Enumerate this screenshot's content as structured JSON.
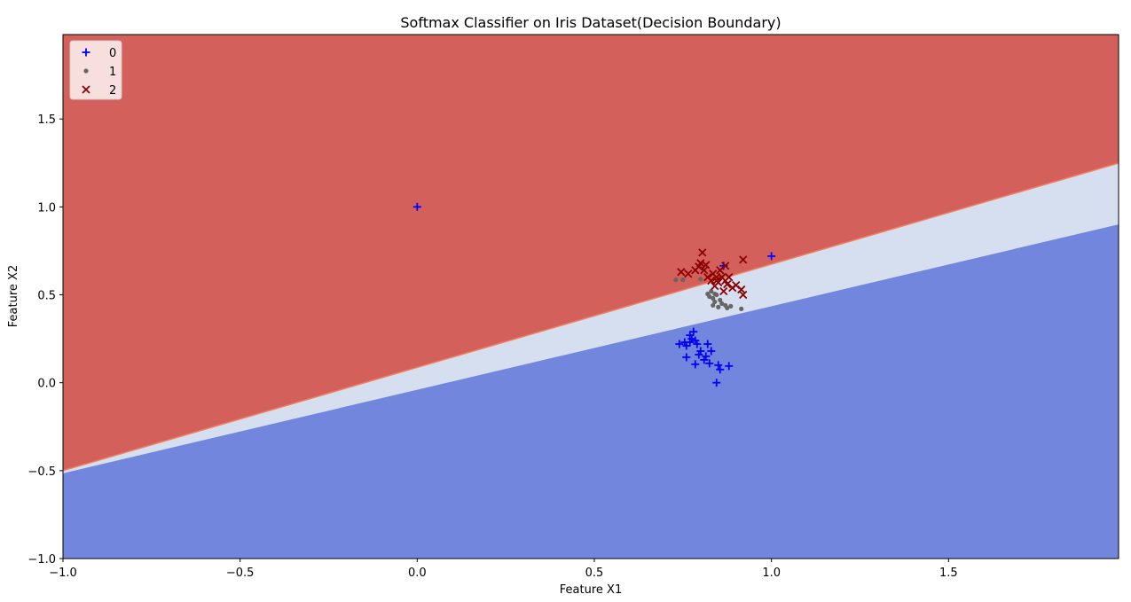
{
  "chart_data": {
    "type": "scatter",
    "title": "Softmax Classifier on Iris Dataset(Decision Boundary)",
    "xlabel": "Feature X1",
    "ylabel": "Feature X2",
    "xlim": [
      -1.0,
      1.98
    ],
    "ylim": [
      -1.0,
      1.98
    ],
    "xticks": [
      -1.0,
      -0.5,
      0.0,
      0.5,
      1.0,
      1.5
    ],
    "xtick_labels": [
      "−1.0",
      "−0.5",
      "0.0",
      "0.5",
      "1.0",
      "1.5"
    ],
    "yticks": [
      -1.0,
      -0.5,
      0.0,
      0.5,
      1.0,
      1.5
    ],
    "ytick_labels": [
      "−1.0",
      "−0.5",
      "0.0",
      "0.5",
      "1.0",
      "1.5"
    ],
    "grid": false,
    "legend_position": "top-left",
    "decision_regions": {
      "colors": {
        "class2_region": "#d4605c",
        "class1_region": "#d6dff0",
        "class0_region": "#7286de",
        "edge": "#f08060"
      },
      "boundary_2_1": {
        "slope": 0.587,
        "intercept": 0.087
      },
      "boundary_1_0": {
        "slope": 0.475,
        "intercept": -0.04
      }
    },
    "series": [
      {
        "name": "0",
        "marker": "plus",
        "color": "#0000ff",
        "points": [
          [
            0.0,
            1.0
          ],
          [
            1.0,
            0.72
          ],
          [
            0.865,
            0.665
          ],
          [
            0.74,
            0.22
          ],
          [
            0.755,
            0.23
          ],
          [
            0.76,
            0.21
          ],
          [
            0.77,
            0.27
          ],
          [
            0.775,
            0.25
          ],
          [
            0.78,
            0.29
          ],
          [
            0.785,
            0.24
          ],
          [
            0.79,
            0.22
          ],
          [
            0.77,
            0.23
          ],
          [
            0.8,
            0.18
          ],
          [
            0.82,
            0.22
          ],
          [
            0.83,
            0.18
          ],
          [
            0.81,
            0.13
          ],
          [
            0.825,
            0.11
          ],
          [
            0.815,
            0.15
          ],
          [
            0.76,
            0.145
          ],
          [
            0.785,
            0.105
          ],
          [
            0.85,
            0.1
          ],
          [
            0.855,
            0.075
          ],
          [
            0.88,
            0.095
          ],
          [
            0.845,
            0.0
          ],
          [
            0.795,
            0.16
          ]
        ]
      },
      {
        "name": "1",
        "marker": "dot",
        "color": "#666666",
        "points": [
          [
            0.73,
            0.585
          ],
          [
            0.75,
            0.585
          ],
          [
            0.8,
            0.59
          ],
          [
            0.82,
            0.505
          ],
          [
            0.83,
            0.52
          ],
          [
            0.835,
            0.48
          ],
          [
            0.84,
            0.46
          ],
          [
            0.845,
            0.5
          ],
          [
            0.85,
            0.43
          ],
          [
            0.855,
            0.47
          ],
          [
            0.86,
            0.45
          ],
          [
            0.87,
            0.44
          ],
          [
            0.875,
            0.425
          ],
          [
            0.885,
            0.435
          ],
          [
            0.915,
            0.42
          ],
          [
            0.835,
            0.44
          ],
          [
            0.825,
            0.49
          ],
          [
            0.84,
            0.505
          ]
        ]
      },
      {
        "name": "2",
        "marker": "x",
        "color": "#8b0000",
        "points": [
          [
            0.745,
            0.63
          ],
          [
            0.765,
            0.62
          ],
          [
            0.785,
            0.64
          ],
          [
            0.795,
            0.66
          ],
          [
            0.8,
            0.68
          ],
          [
            0.805,
            0.74
          ],
          [
            0.81,
            0.64
          ],
          [
            0.815,
            0.67
          ],
          [
            0.82,
            0.6
          ],
          [
            0.83,
            0.58
          ],
          [
            0.835,
            0.62
          ],
          [
            0.84,
            0.55
          ],
          [
            0.845,
            0.6
          ],
          [
            0.85,
            0.57
          ],
          [
            0.855,
            0.64
          ],
          [
            0.86,
            0.6
          ],
          [
            0.865,
            0.52
          ],
          [
            0.87,
            0.58
          ],
          [
            0.875,
            0.56
          ],
          [
            0.88,
            0.6
          ],
          [
            0.89,
            0.54
          ],
          [
            0.9,
            0.555
          ],
          [
            0.915,
            0.53
          ],
          [
            0.92,
            0.5
          ],
          [
            0.92,
            0.7
          ],
          [
            0.87,
            0.665
          ],
          [
            0.845,
            0.58
          ]
        ]
      }
    ]
  }
}
